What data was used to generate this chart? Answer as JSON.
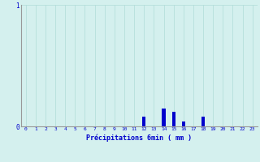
{
  "xlabel": "Précipitations 6min ( mm )",
  "background_color": "#d4f0ee",
  "bar_color": "#0000cc",
  "grid_color": "#b0ddd8",
  "axis_color": "#999999",
  "text_color": "#0000cc",
  "categories": [
    0,
    1,
    2,
    3,
    4,
    5,
    6,
    7,
    8,
    9,
    10,
    11,
    12,
    13,
    14,
    15,
    16,
    17,
    18,
    19,
    20,
    21,
    22,
    23
  ],
  "values": [
    0,
    0,
    0,
    0,
    0,
    0,
    0,
    0,
    0,
    0,
    0,
    0,
    0.08,
    0,
    0.15,
    0.12,
    0.04,
    0,
    0.08,
    0,
    0,
    0,
    0,
    0
  ],
  "ylim": [
    0,
    1
  ],
  "yticks": [
    0,
    1
  ],
  "xlim": [
    -0.5,
    23.5
  ]
}
